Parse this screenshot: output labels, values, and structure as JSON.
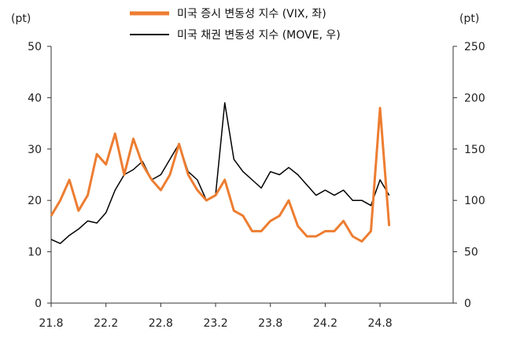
{
  "chart_data": {
    "type": "line",
    "title": "",
    "left_unit": "(pt)",
    "right_unit": "(pt)",
    "x_ticks": [
      "21.8",
      "22.2",
      "22.8",
      "23.2",
      "23.8",
      "24.2",
      "24.8"
    ],
    "y_left_ticks": [
      "0",
      "10",
      "20",
      "30",
      "40",
      "50"
    ],
    "y_right_ticks": [
      "0",
      "50",
      "100",
      "150",
      "200",
      "250"
    ],
    "y_left_range": [
      0,
      50
    ],
    "y_right_range": [
      0,
      250
    ],
    "grid": false,
    "legend_position": "top-center",
    "series": [
      {
        "name": "미국 증시 변동성 지수 (VIX, 좌)",
        "axis": "left",
        "color": "#ED7D31",
        "x": [
          "21.8",
          "21.9",
          "21.10",
          "21.11",
          "21.12",
          "22.1",
          "22.2",
          "22.3",
          "22.4",
          "22.5",
          "22.6",
          "22.7",
          "22.8",
          "22.9",
          "22.10",
          "22.11",
          "22.12",
          "23.1",
          "23.2",
          "23.3",
          "23.4",
          "23.5",
          "23.6",
          "23.7",
          "23.8",
          "23.9",
          "23.10",
          "23.11",
          "23.12",
          "24.1",
          "24.2",
          "24.3",
          "24.4",
          "24.5",
          "24.6",
          "24.7",
          "24.8",
          "24.9"
        ],
        "values": [
          17,
          20,
          24,
          18,
          21,
          29,
          27,
          33,
          25,
          32,
          27,
          24,
          22,
          25,
          31,
          25,
          22,
          20,
          21,
          24,
          18,
          17,
          14,
          14,
          16,
          17,
          20,
          15,
          13,
          13,
          14,
          14,
          16,
          13,
          12,
          14,
          38,
          15
        ]
      },
      {
        "name": "미국 채권 변동성 지수 (MOVE, 우)",
        "axis": "right",
        "color": "#000000",
        "x": [
          "21.8",
          "21.9",
          "21.10",
          "21.11",
          "21.12",
          "22.1",
          "22.2",
          "22.3",
          "22.4",
          "22.5",
          "22.6",
          "22.7",
          "22.8",
          "22.9",
          "22.10",
          "22.11",
          "22.12",
          "23.1",
          "23.2",
          "23.3",
          "23.4",
          "23.5",
          "23.6",
          "23.7",
          "23.8",
          "23.9",
          "23.10",
          "23.11",
          "23.12",
          "24.1",
          "24.2",
          "24.3",
          "24.4",
          "24.5",
          "24.6",
          "24.7",
          "24.8",
          "24.9"
        ],
        "values": [
          62,
          58,
          66,
          72,
          80,
          78,
          88,
          110,
          125,
          130,
          138,
          120,
          125,
          140,
          155,
          128,
          120,
          100,
          105,
          195,
          140,
          128,
          120,
          112,
          128,
          125,
          132,
          125,
          115,
          105,
          110,
          105,
          110,
          100,
          100,
          95,
          120,
          105
        ]
      }
    ]
  }
}
